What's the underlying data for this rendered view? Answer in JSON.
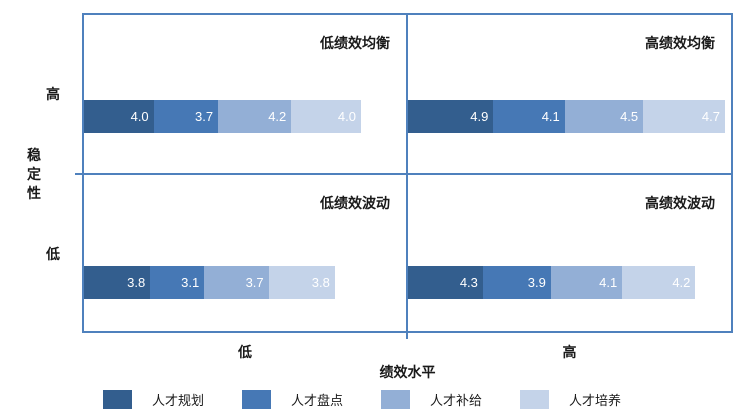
{
  "chart_data": {
    "type": "bar",
    "variant": "quadrant-matrix-stacked-horizontal-bars",
    "x_axis": {
      "label": "绩效水平",
      "categories": [
        "低",
        "高"
      ]
    },
    "y_axis": {
      "label": "稳定性",
      "categories": [
        "高",
        "低"
      ]
    },
    "series": [
      {
        "name": "人才规划",
        "color": "#335E8E"
      },
      {
        "name": "人才盘点",
        "color": "#4678B5"
      },
      {
        "name": "人才补给",
        "color": "#93AFD6"
      },
      {
        "name": "人才培养",
        "color": "#C4D3E9"
      }
    ],
    "quadrants": [
      {
        "id": "top-left",
        "title": "低绩效均衡",
        "stability": "高",
        "performance": "低",
        "values": [
          4.0,
          3.7,
          4.2,
          4.0
        ]
      },
      {
        "id": "top-right",
        "title": "高绩效均衡",
        "stability": "高",
        "performance": "高",
        "values": [
          4.9,
          4.1,
          4.5,
          4.7
        ]
      },
      {
        "id": "bottom-left",
        "title": "低绩效波动",
        "stability": "低",
        "performance": "低",
        "values": [
          3.8,
          3.1,
          3.7,
          3.8
        ]
      },
      {
        "id": "bottom-right",
        "title": "高绩效波动",
        "stability": "低",
        "performance": "高",
        "values": [
          4.3,
          3.9,
          4.1,
          4.2
        ]
      }
    ],
    "value_format": "one-decimal",
    "border_color": "#4F81BD",
    "legend_position": "bottom",
    "grid": "2x2 quadrant dividers only"
  }
}
